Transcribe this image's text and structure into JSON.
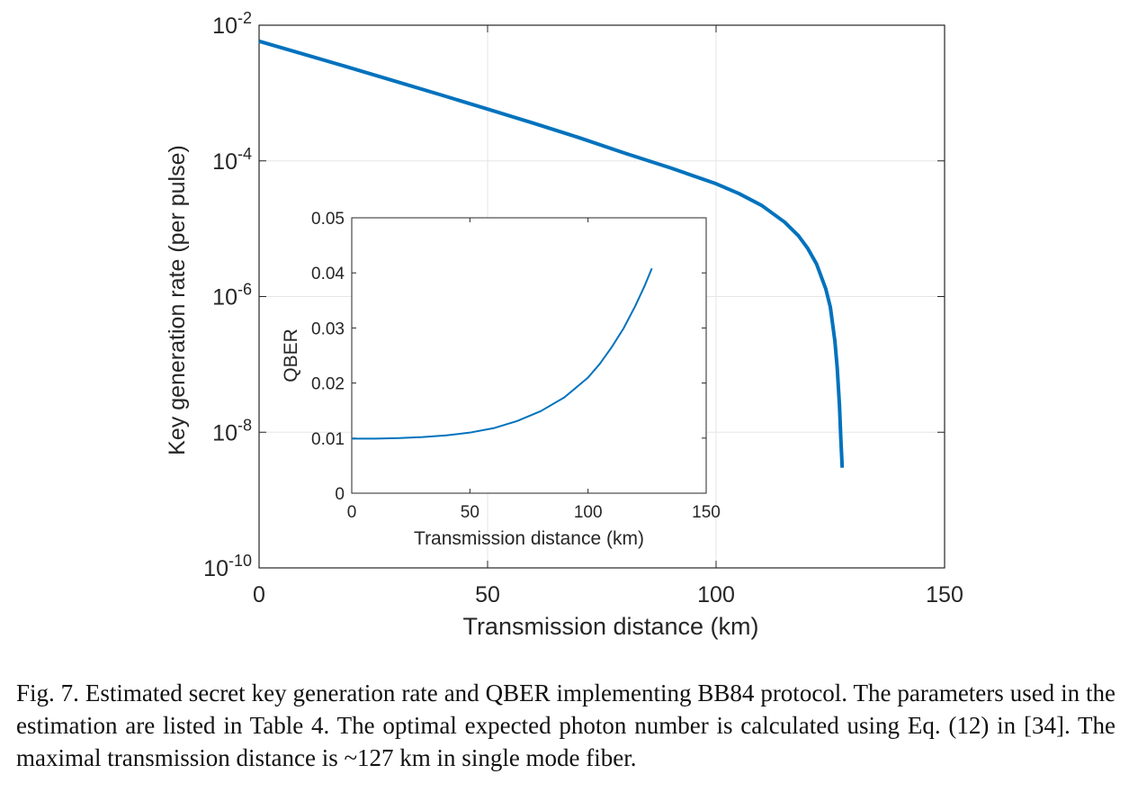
{
  "caption": "Fig. 7. Estimated secret key generation rate and QBER implementing BB84 protocol. The parameters used in the estimation are listed in Table 4. The optimal expected photon number is calculated using Eq. (12) in [34]. The maximal transmission distance is ~127 km in single mode fiber.",
  "colors": {
    "line": "#0072BD",
    "axis": "#262626",
    "grid": "#e6e6e6"
  },
  "chart_data": [
    {
      "type": "line",
      "xlabel": "Transmission distance (km)",
      "ylabel": "Key generation rate (per pulse)",
      "xlim": [
        0,
        150
      ],
      "ylim": [
        1e-10,
        0.01
      ],
      "yscale": "log",
      "xticks": [
        0,
        50,
        100,
        150
      ],
      "xtick_labels": [
        "0",
        "50",
        "100",
        "150"
      ],
      "yticks": [
        -10,
        -8,
        -6,
        -4,
        -2
      ],
      "ytick_base": "10",
      "ytick_exponents": [
        "-10",
        "-8",
        "-6",
        "-4",
        "-2"
      ],
      "grid": true,
      "series": [
        {
          "x": [
            0,
            10,
            20,
            30,
            40,
            50,
            60,
            70,
            80,
            90,
            100,
            105,
            110,
            115,
            118,
            120,
            122,
            124,
            125,
            126,
            126.5,
            127,
            127.3,
            127.6
          ],
          "y": [
            0.0058,
            0.0037,
            0.00235,
            0.00148,
            0.00093,
            0.00058,
            0.00036,
            0.00022,
            0.00013,
            7.9e-05,
            4.6e-05,
            3.3e-05,
            2.2e-05,
            1.25e-05,
            7.9e-06,
            5.2e-06,
            3e-06,
            1.3e-06,
            7e-07,
            2.2e-07,
            9e-08,
            2.5e-08,
            8e-09,
            3e-09
          ]
        }
      ]
    },
    {
      "type": "line",
      "inset": true,
      "xlabel": "Transmission distance (km)",
      "ylabel": "QBER",
      "xlim": [
        0,
        150
      ],
      "ylim": [
        0,
        0.05
      ],
      "xticks": [
        0,
        50,
        100,
        150
      ],
      "xtick_labels": [
        "0",
        "50",
        "100",
        "150"
      ],
      "yticks": [
        0,
        0.01,
        0.02,
        0.03,
        0.04,
        0.05
      ],
      "ytick_labels": [
        "0",
        "0.01",
        "0.02",
        "0.03",
        "0.04",
        "0.05"
      ],
      "grid": false,
      "series": [
        {
          "x": [
            0,
            10,
            20,
            30,
            40,
            50,
            60,
            70,
            80,
            90,
            100,
            105,
            110,
            115,
            120,
            124,
            127
          ],
          "y": [
            0.0099,
            0.0099,
            0.01,
            0.0102,
            0.0105,
            0.011,
            0.0118,
            0.0131,
            0.0149,
            0.0174,
            0.021,
            0.0235,
            0.0265,
            0.0299,
            0.034,
            0.0377,
            0.0408
          ]
        }
      ]
    }
  ]
}
